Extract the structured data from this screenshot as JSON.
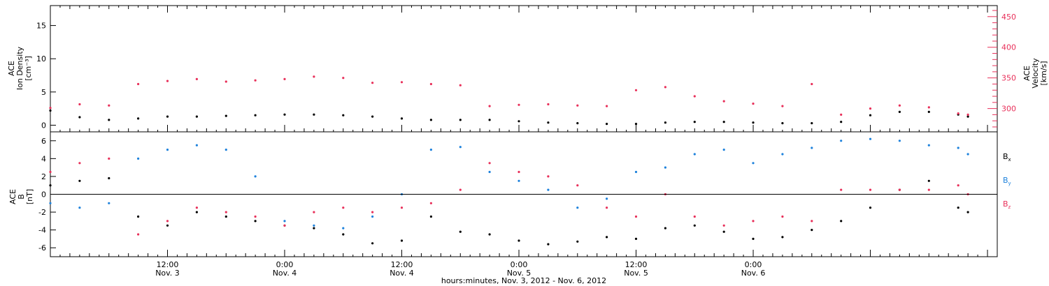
{
  "chart_data": [
    {
      "type": "scatter",
      "panel": "top",
      "ylabel_left": [
        "ACE",
        "Ion Density",
        "[cm⁻³]"
      ],
      "ylabel_right": [
        "ACE",
        "Velocity",
        "[km/s]"
      ],
      "xlim_hours": [
        0,
        97
      ],
      "ylim_left": [
        -1,
        18
      ],
      "ylim_right": [
        262,
        468
      ],
      "left_ticks": [
        0,
        5,
        10,
        15
      ],
      "right_ticks": [
        300,
        350,
        400,
        450
      ],
      "right_axis_color": "#e8305a",
      "series": [
        {
          "name": "",
          "axis": "left",
          "color": "#000000",
          "x": [
            0,
            3,
            6,
            9,
            12,
            15,
            18,
            21,
            24,
            27,
            30,
            33,
            36,
            39,
            42,
            45,
            48,
            51,
            54,
            57,
            60,
            63,
            66,
            69,
            72,
            75,
            78,
            81,
            84,
            87,
            90,
            93,
            94
          ],
          "y": [
            2.2,
            1.2,
            0.8,
            1.0,
            1.3,
            1.3,
            1.4,
            1.5,
            1.6,
            1.6,
            1.5,
            1.3,
            1.0,
            0.8,
            0.8,
            0.8,
            0.6,
            0.4,
            0.3,
            0.2,
            0.2,
            0.4,
            0.5,
            0.5,
            0.4,
            0.3,
            0.3,
            0.5,
            1.5,
            2.0,
            2.0,
            1.6,
            1.3
          ]
        },
        {
          "name": "",
          "axis": "right",
          "color": "#e8305a",
          "x": [
            0,
            3,
            6,
            9,
            12,
            15,
            18,
            21,
            24,
            27,
            30,
            33,
            36,
            39,
            42,
            45,
            48,
            51,
            54,
            57,
            60,
            63,
            66,
            69,
            72,
            75,
            78,
            81,
            84,
            87,
            90,
            93,
            94
          ],
          "y": [
            301,
            307,
            305,
            340,
            345,
            348,
            344,
            346,
            348,
            352,
            350,
            342,
            343,
            340,
            338,
            304,
            306,
            307,
            305,
            304,
            330,
            335,
            320,
            312,
            308,
            304,
            340,
            290,
            300,
            305,
            302,
            292,
            290
          ]
        }
      ]
    },
    {
      "type": "scatter",
      "panel": "bottom",
      "ylabel": [
        "ACE",
        "B",
        "[nT]"
      ],
      "xlim_hours": [
        0,
        97
      ],
      "ylim": [
        -7,
        7
      ],
      "ticks": [
        -6,
        -4,
        -2,
        0,
        2,
        4,
        6
      ],
      "zero_line": true,
      "legend": [
        {
          "label": "B",
          "sub": "x",
          "color": "#000000"
        },
        {
          "label": "B",
          "sub": "y",
          "color": "#1e82dc"
        },
        {
          "label": "B",
          "sub": "z",
          "color": "#e8305a"
        }
      ],
      "series": [
        {
          "name": "Bx",
          "color": "#000000",
          "x": [
            0,
            3,
            6,
            9,
            12,
            15,
            18,
            21,
            24,
            27,
            30,
            33,
            36,
            39,
            42,
            45,
            48,
            51,
            54,
            57,
            60,
            63,
            66,
            69,
            72,
            75,
            78,
            81,
            84,
            87,
            90,
            93,
            94
          ],
          "y": [
            1,
            1.5,
            1.8,
            -2.5,
            -3.5,
            -2.0,
            -2.5,
            -3.0,
            -3.5,
            -3.8,
            -4.5,
            -5.5,
            -5.2,
            -2.5,
            -4.2,
            -4.5,
            -5.2,
            -5.6,
            -5.3,
            -4.8,
            -5.0,
            -3.8,
            -3.5,
            -4.2,
            -5.0,
            -4.8,
            -4.0,
            -3.0,
            -1.5,
            0.5,
            1.5,
            -1.5,
            -2.0
          ]
        },
        {
          "name": "By",
          "color": "#1e82dc",
          "x": [
            0,
            3,
            6,
            9,
            12,
            15,
            18,
            21,
            24,
            27,
            30,
            33,
            36,
            39,
            42,
            45,
            48,
            51,
            54,
            57,
            60,
            63,
            66,
            69,
            72,
            75,
            78,
            81,
            84,
            87,
            90,
            93,
            94
          ],
          "y": [
            -1,
            -1.5,
            -1.0,
            4.0,
            5.0,
            5.5,
            5.0,
            2.0,
            -3.0,
            -3.5,
            -3.8,
            -2.5,
            0.0,
            5.0,
            5.3,
            2.5,
            1.5,
            0.5,
            -1.5,
            -0.5,
            2.5,
            3.0,
            4.5,
            5.0,
            3.5,
            4.5,
            5.2,
            6.0,
            6.2,
            6.0,
            5.5,
            5.2,
            4.5
          ]
        },
        {
          "name": "Bz",
          "color": "#e8305a",
          "x": [
            0,
            3,
            6,
            9,
            12,
            15,
            18,
            21,
            24,
            27,
            30,
            33,
            36,
            39,
            42,
            45,
            48,
            51,
            54,
            57,
            60,
            63,
            66,
            69,
            72,
            75,
            78,
            81,
            84,
            87,
            90,
            93,
            94
          ],
          "y": [
            2.5,
            3.5,
            4.0,
            -4.5,
            -3.0,
            -1.5,
            -2.0,
            -2.5,
            -3.5,
            -2.0,
            -1.5,
            -2.0,
            -1.5,
            -1.0,
            0.5,
            3.5,
            2.5,
            2.0,
            1.0,
            -1.5,
            -2.5,
            0.0,
            -2.5,
            -3.5,
            -3.0,
            -2.5,
            -3.0,
            0.5,
            0.5,
            0.5,
            0.5,
            1.0,
            0.0
          ]
        }
      ]
    }
  ],
  "x_axis": {
    "ticks": [
      {
        "hour": 12,
        "time": "12:00",
        "date": "Nov. 3"
      },
      {
        "hour": 24,
        "time": "0:00",
        "date": "Nov. 4"
      },
      {
        "hour": 36,
        "time": "12:00",
        "date": "Nov. 4"
      },
      {
        "hour": 48,
        "time": "0:00",
        "date": "Nov. 5"
      },
      {
        "hour": 60,
        "time": "12:00",
        "date": "Nov. 5"
      },
      {
        "hour": 72,
        "time": "0:00",
        "date": "Nov. 6"
      }
    ],
    "label": "hours:minutes, Nov.  3, 2012 - Nov.  6, 2012"
  }
}
